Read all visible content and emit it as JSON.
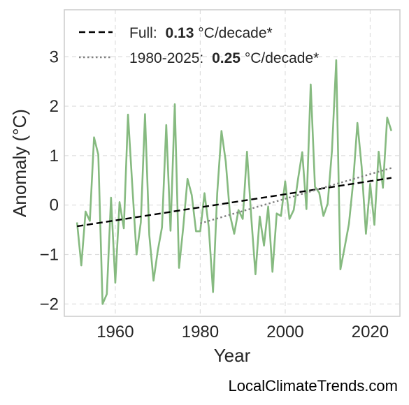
{
  "chart_data": {
    "type": "line",
    "xlabel": "Year",
    "ylabel": "Anomaly (°C)",
    "xlim": [
      1948,
      2027
    ],
    "ylim": [
      -2.25,
      3.95
    ],
    "x_ticks": [
      1960,
      1980,
      2000,
      2020
    ],
    "y_ticks": [
      -2,
      -1,
      0,
      1,
      2,
      3
    ],
    "y_tick_labels": [
      "−2",
      "−1",
      "0",
      "1",
      "2",
      "3"
    ],
    "grid": true,
    "legend_position": "top-left",
    "series": [
      {
        "style": "solid",
        "color": "#86ba80",
        "x": [
          1951,
          1952,
          1953,
          1954,
          1955,
          1956,
          1957,
          1958,
          1959,
          1960,
          1961,
          1962,
          1963,
          1964,
          1965,
          1966,
          1967,
          1968,
          1969,
          1970,
          1971,
          1972,
          1973,
          1974,
          1975,
          1976,
          1977,
          1978,
          1979,
          1980,
          1981,
          1982,
          1983,
          1984,
          1985,
          1986,
          1987,
          1988,
          1989,
          1990,
          1991,
          1992,
          1993,
          1994,
          1995,
          1996,
          1997,
          1998,
          1999,
          2000,
          2001,
          2002,
          2003,
          2004,
          2005,
          2006,
          2007,
          2008,
          2009,
          2010,
          2011,
          2012,
          2013,
          2014,
          2015,
          2016,
          2017,
          2018,
          2019,
          2020,
          2021,
          2022,
          2023,
          2024,
          2025
        ],
        "y": [
          -0.35,
          -1.22,
          -0.13,
          -0.32,
          1.37,
          1.02,
          -2.0,
          -1.8,
          0.15,
          -1.57,
          0.06,
          -0.47,
          1.83,
          0.4,
          -1.0,
          -0.35,
          1.84,
          -0.6,
          -1.53,
          -0.92,
          -0.45,
          1.62,
          -0.52,
          2.04,
          -1.27,
          -0.45,
          0.53,
          0.2,
          -0.53,
          -0.53,
          0.24,
          -0.45,
          -1.76,
          0.24,
          1.5,
          0.88,
          -0.2,
          -0.58,
          -0.1,
          -0.28,
          1.08,
          -0.23,
          -1.4,
          -0.23,
          -0.82,
          -0.03,
          -1.35,
          -0.17,
          -0.22,
          0.48,
          -0.28,
          -0.1,
          0.52,
          1.07,
          -0.08,
          2.44,
          0.37,
          0.25,
          -0.22,
          0.03,
          1.1,
          2.93,
          -1.3,
          -0.85,
          -0.38,
          0.47,
          1.66,
          0.77,
          -0.58,
          0.43,
          -0.4,
          1.08,
          0.35,
          1.77,
          1.5
        ]
      },
      {
        "name": "Full:",
        "trend_value": "0.13",
        "trend_unit": "°C/decade*",
        "style": "dashed",
        "color": "#000000",
        "x": [
          1951,
          2025
        ],
        "y": [
          -0.43,
          0.55
        ]
      },
      {
        "name": "1980-2025:",
        "trend_value": "0.25",
        "trend_unit": "°C/decade*",
        "style": "dotted",
        "color": "#808080",
        "x": [
          1980,
          2025
        ],
        "y": [
          -0.37,
          0.75
        ]
      }
    ]
  },
  "credit": "LocalClimateTrends.com"
}
